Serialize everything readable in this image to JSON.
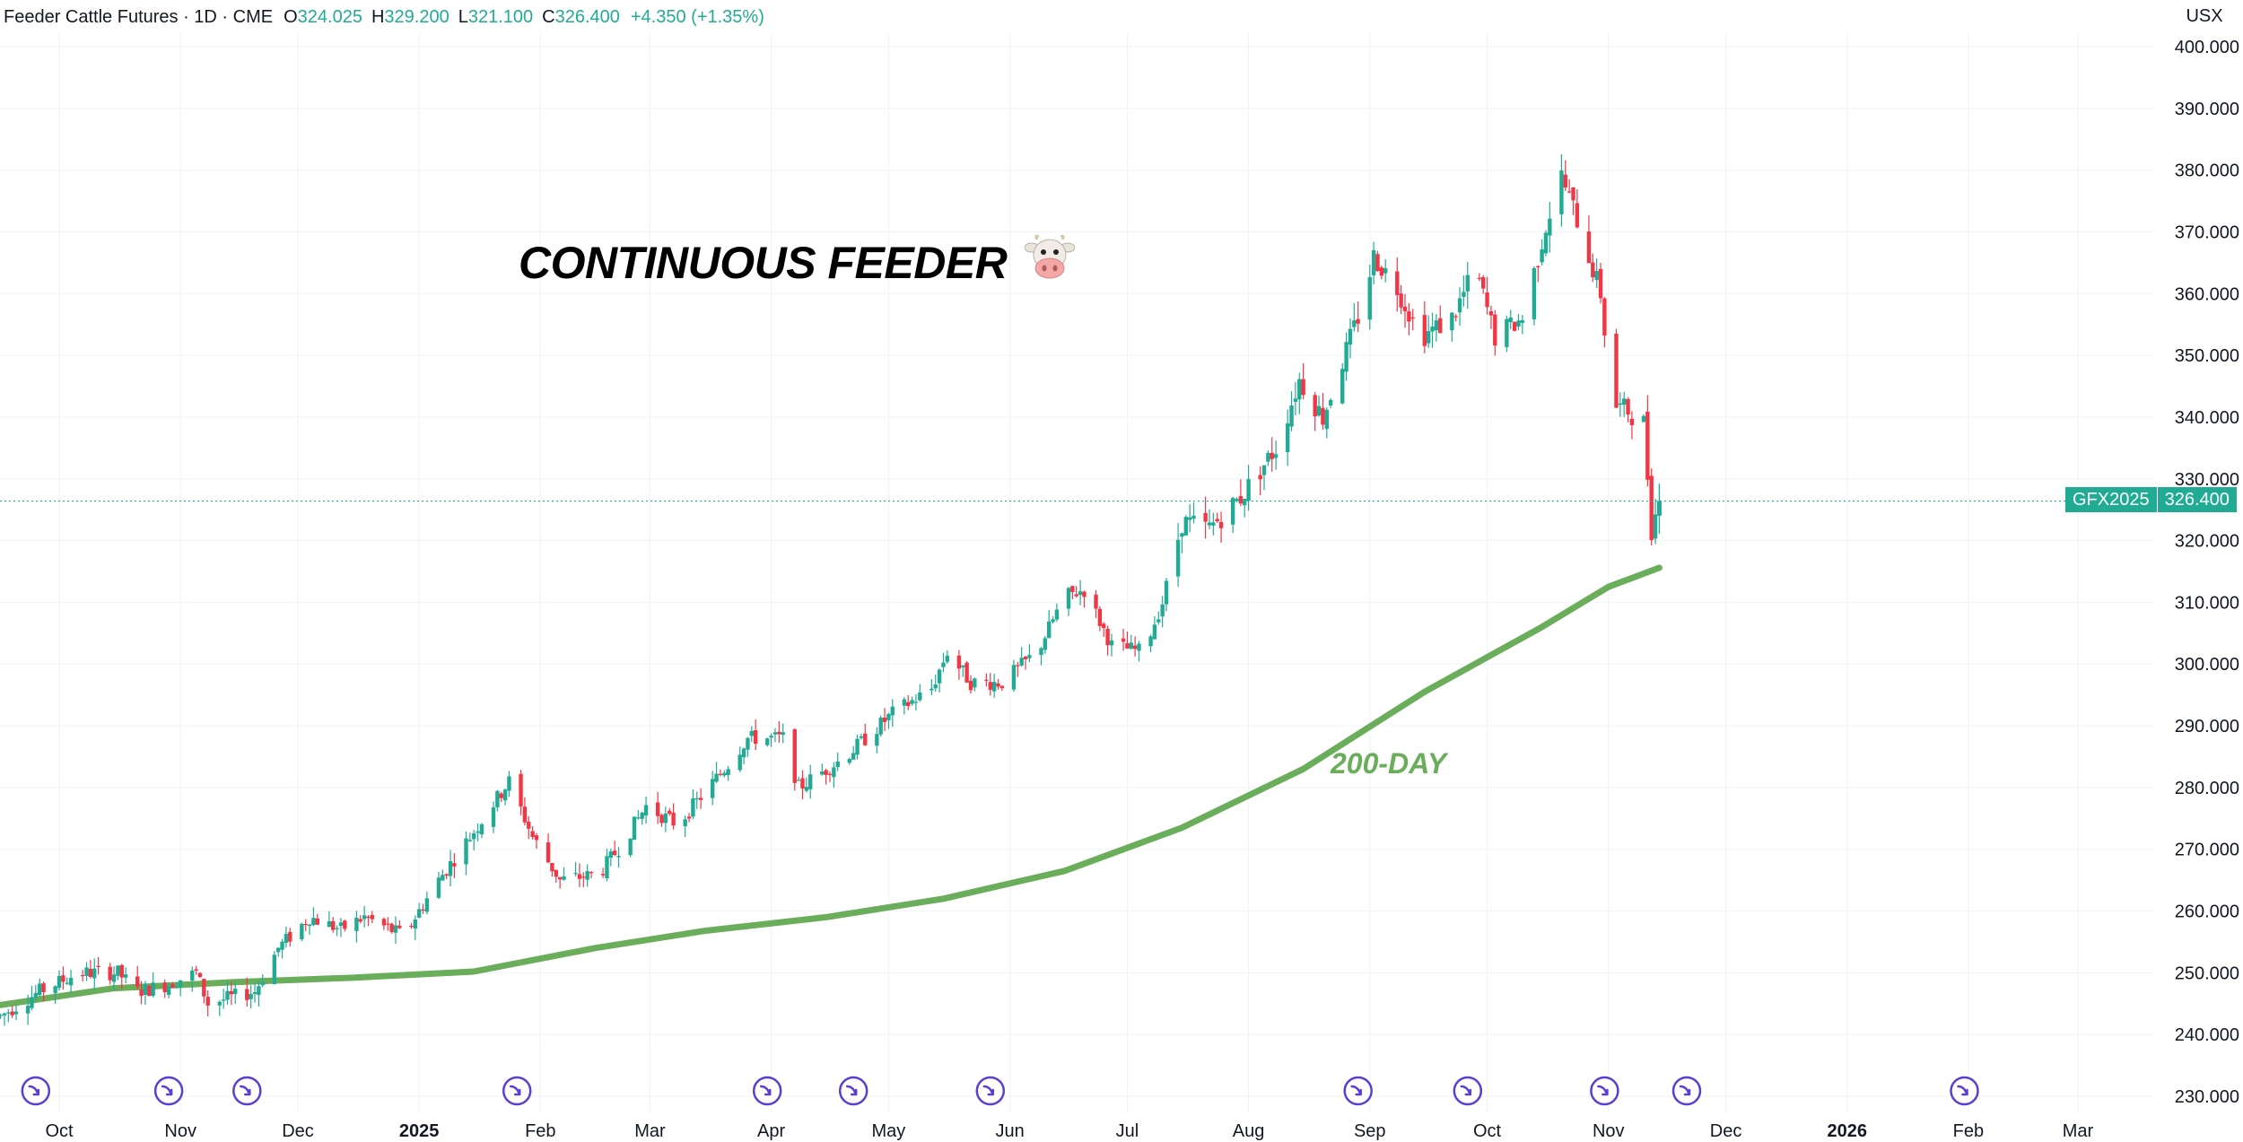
{
  "header": {
    "symbol": "Feeder Cattle Futures · 1D · CME",
    "open_label": "O",
    "open": "324.025",
    "high_label": "H",
    "high": "329.200",
    "low_label": "L",
    "low": "321.100",
    "close_label": "C",
    "close": "326.400",
    "change": "+4.350 (+1.35%)"
  },
  "currency": "USX",
  "title": "CONTINUOUS FEEDER",
  "title_icon": "cow-face-icon",
  "ma_label": "200-DAY",
  "price_tag": {
    "symbol": "GFX2025",
    "price": "326.400"
  },
  "colors": {
    "up": "#22ab94",
    "down": "#f23645",
    "ma": "#6aad5a",
    "event_icon": "#5b3fd1",
    "grid": "#f0f3fa"
  },
  "chart_data": {
    "type": "candlestick",
    "title": "CONTINUOUS FEEDER",
    "timeframe": "1D",
    "y_unit": "USX",
    "ylim": [
      227,
      404
    ],
    "y_ticks": [
      "400.000",
      "390.000",
      "380.000",
      "370.000",
      "360.000",
      "350.000",
      "340.000",
      "330.000",
      "320.000",
      "310.000",
      "300.000",
      "290.000",
      "280.000",
      "270.000",
      "260.000",
      "250.000",
      "240.000",
      "230.000"
    ],
    "x_ticks": [
      {
        "label": "Oct",
        "date": "2024-10-01",
        "bold": false
      },
      {
        "label": "Nov",
        "date": "2024-11-01",
        "bold": false
      },
      {
        "label": "Dec",
        "date": "2024-12-01",
        "bold": false
      },
      {
        "label": "2025",
        "date": "2025-01-01",
        "bold": true
      },
      {
        "label": "Feb",
        "date": "2025-02-01",
        "bold": false
      },
      {
        "label": "Mar",
        "date": "2025-03-01",
        "bold": false
      },
      {
        "label": "Apr",
        "date": "2025-04-01",
        "bold": false
      },
      {
        "label": "May",
        "date": "2025-05-01",
        "bold": false
      },
      {
        "label": "Jun",
        "date": "2025-06-01",
        "bold": false
      },
      {
        "label": "Jul",
        "date": "2025-07-01",
        "bold": false
      },
      {
        "label": "Aug",
        "date": "2025-08-01",
        "bold": false
      },
      {
        "label": "Sep",
        "date": "2025-09-01",
        "bold": false
      },
      {
        "label": "Oct",
        "date": "2025-10-01",
        "bold": false
      },
      {
        "label": "Nov",
        "date": "2025-11-01",
        "bold": false
      },
      {
        "label": "Dec",
        "date": "2025-12-01",
        "bold": false
      },
      {
        "label": "2026",
        "date": "2026-01-01",
        "bold": true
      },
      {
        "label": "Feb",
        "date": "2026-02-01",
        "bold": false
      },
      {
        "label": "Mar",
        "date": "2026-03-01",
        "bold": false
      }
    ],
    "price_path": [
      [
        "2024-09-16",
        243
      ],
      [
        "2024-09-26",
        247
      ],
      [
        "2024-10-06",
        250
      ],
      [
        "2024-10-16",
        250
      ],
      [
        "2024-10-21",
        247
      ],
      [
        "2024-10-28",
        248
      ],
      [
        "2024-11-05",
        250
      ],
      [
        "2024-11-08",
        245
      ],
      [
        "2024-11-20",
        247
      ],
      [
        "2024-11-26",
        254
      ],
      [
        "2024-12-04",
        259
      ],
      [
        "2024-12-12",
        257
      ],
      [
        "2024-12-18",
        259
      ],
      [
        "2024-12-28",
        256
      ],
      [
        "2025-01-06",
        265
      ],
      [
        "2025-01-14",
        272
      ],
      [
        "2025-01-24",
        281
      ],
      [
        "2025-01-30",
        272
      ],
      [
        "2025-02-06",
        265
      ],
      [
        "2025-02-16",
        266
      ],
      [
        "2025-02-22",
        271
      ],
      [
        "2025-02-28",
        277
      ],
      [
        "2025-03-08",
        274
      ],
      [
        "2025-03-20",
        283
      ],
      [
        "2025-03-26",
        288
      ],
      [
        "2025-04-04",
        288
      ],
      [
        "2025-04-08",
        280
      ],
      [
        "2025-04-20",
        285
      ],
      [
        "2025-05-02",
        292
      ],
      [
        "2025-05-12",
        296
      ],
      [
        "2025-05-16",
        302
      ],
      [
        "2025-05-22",
        297
      ],
      [
        "2025-05-30",
        297
      ],
      [
        "2025-06-08",
        302
      ],
      [
        "2025-06-15",
        311
      ],
      [
        "2025-06-20",
        312
      ],
      [
        "2025-06-27",
        303
      ],
      [
        "2025-07-05",
        302
      ],
      [
        "2025-07-10",
        310
      ],
      [
        "2025-07-15",
        323
      ],
      [
        "2025-07-22",
        322
      ],
      [
        "2025-07-30",
        327
      ],
      [
        "2025-08-08",
        335
      ],
      [
        "2025-08-14",
        346
      ],
      [
        "2025-08-20",
        340
      ],
      [
        "2025-08-30",
        358
      ],
      [
        "2025-09-02",
        366
      ],
      [
        "2025-09-08",
        361
      ],
      [
        "2025-09-14",
        353
      ],
      [
        "2025-09-22",
        356
      ],
      [
        "2025-09-28",
        364
      ],
      [
        "2025-10-03",
        353
      ],
      [
        "2025-10-10",
        356
      ],
      [
        "2025-10-16",
        371
      ],
      [
        "2025-10-20",
        379
      ],
      [
        "2025-10-24",
        372
      ],
      [
        "2025-10-30",
        360
      ],
      [
        "2025-11-02",
        342
      ],
      [
        "2025-11-06",
        341
      ],
      [
        "2025-11-10",
        339
      ],
      [
        "2025-11-12",
        322
      ],
      [
        "2025-11-14",
        326.4
      ]
    ],
    "last": {
      "date": "2025-11-14",
      "open": 324.025,
      "high": 329.2,
      "low": 321.1,
      "close": 326.4,
      "change": 4.35,
      "change_pct": 1.35
    },
    "series": [
      {
        "name": "200-DAY",
        "type": "line",
        "points": [
          [
            "2024-09-13",
            244.5
          ],
          [
            "2024-10-15",
            247.5
          ],
          [
            "2024-11-15",
            248.5
          ],
          [
            "2024-12-15",
            249.2
          ],
          [
            "2025-01-15",
            250.2
          ],
          [
            "2025-02-15",
            254.0
          ],
          [
            "2025-03-15",
            256.8
          ],
          [
            "2025-04-15",
            259.0
          ],
          [
            "2025-05-15",
            262.0
          ],
          [
            "2025-06-15",
            266.5
          ],
          [
            "2025-07-15",
            273.5
          ],
          [
            "2025-08-15",
            283.0
          ],
          [
            "2025-09-15",
            295.5
          ],
          [
            "2025-10-15",
            306.0
          ],
          [
            "2025-11-01",
            312.5
          ],
          [
            "2025-11-14",
            315.6
          ]
        ]
      }
    ],
    "event_markers": [
      "2024-09-25",
      "2024-10-29",
      "2024-11-18",
      "2025-01-26",
      "2025-03-31",
      "2025-04-22",
      "2025-05-27",
      "2025-08-29",
      "2025-09-26",
      "2025-10-31",
      "2025-11-21",
      "2026-01-31"
    ],
    "grid": true
  }
}
